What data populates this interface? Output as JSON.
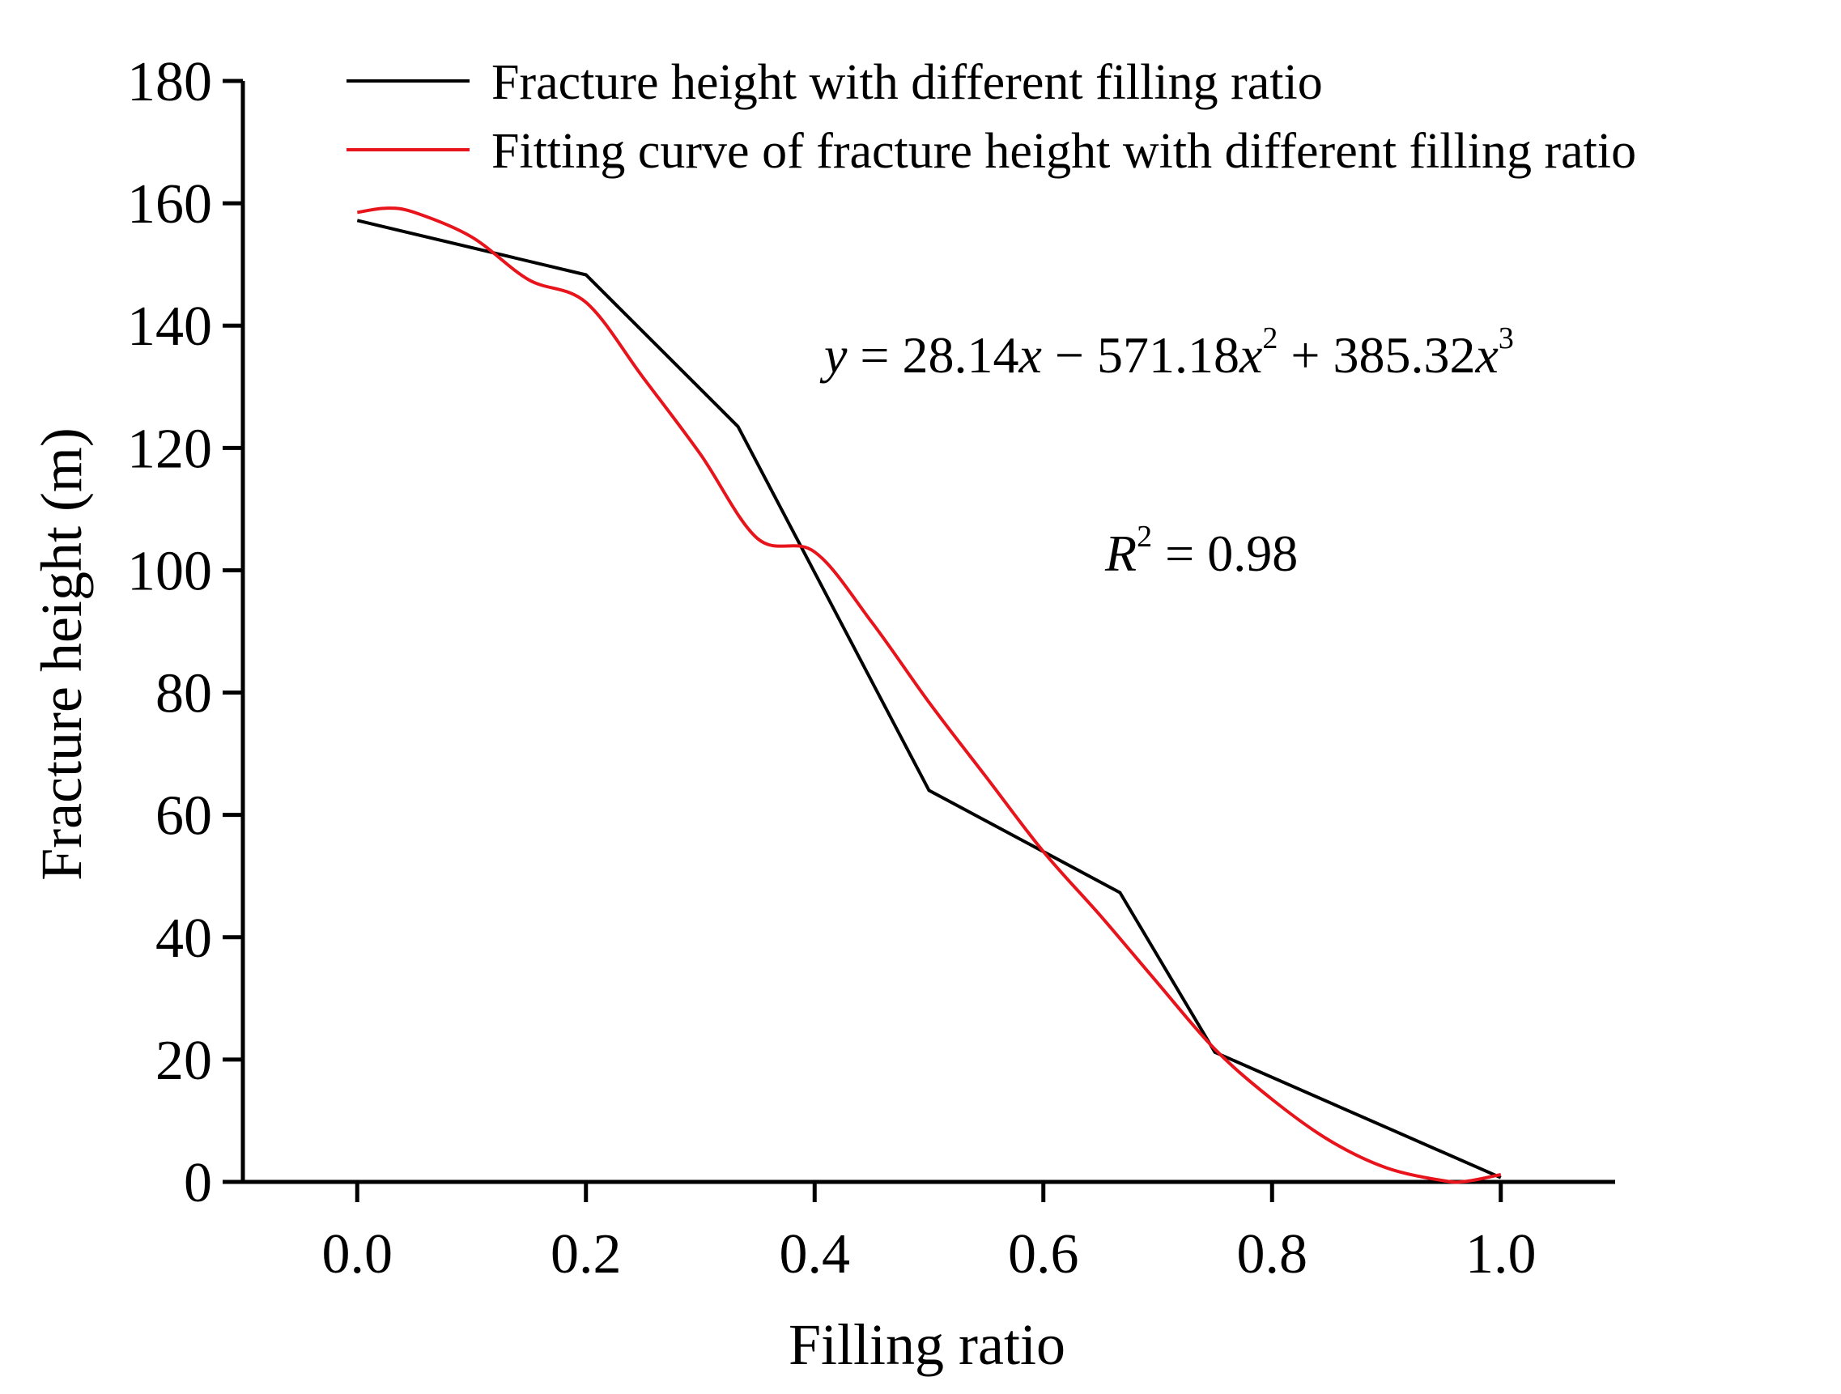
{
  "chart_data": {
    "type": "line",
    "title": "",
    "xlabel": "Filling ratio",
    "ylabel": "Fracture height (m)",
    "xlim": [
      -0.1,
      1.1
    ],
    "ylim": [
      0,
      180
    ],
    "x_ticks": [
      "0.0",
      "0.2",
      "0.4",
      "0.6",
      "0.8",
      "1.0"
    ],
    "y_ticks": [
      "0",
      "20",
      "40",
      "60",
      "80",
      "100",
      "120",
      "140",
      "160",
      "180"
    ],
    "grid": false,
    "legend_position": "top",
    "series": [
      {
        "name": "Fracture height with different filling ratio",
        "color": "#000000",
        "x": [
          0.0,
          0.2,
          0.333,
          0.5,
          0.667,
          0.75,
          1.0
        ],
        "y": [
          157.2,
          148.3,
          123.5,
          64.0,
          47.3,
          21.2,
          0.7
        ]
      },
      {
        "name": "Fitting curve of fracture height with different filling ratio",
        "color": "#e8141c",
        "fit": "cubic",
        "x": [
          0.0,
          0.025,
          0.05,
          0.1,
          0.15,
          0.2,
          0.25,
          0.3,
          0.35,
          0.4,
          0.45,
          0.5,
          0.55,
          0.6,
          0.65,
          0.7,
          0.75,
          0.8,
          0.85,
          0.9,
          0.95,
          0.97,
          1.0
        ],
        "y": [
          158.5,
          159.2,
          158.5,
          154.5,
          147.5,
          143.8,
          131.5,
          119.0,
          105.2,
          103.0,
          91.5,
          78.4,
          66.2,
          54.0,
          43.5,
          32.5,
          21.7,
          13.5,
          6.8,
          2.3,
          0.2,
          0.1,
          1.2
        ]
      }
    ],
    "annotations": {
      "equation": {
        "y_var": "y",
        "eq1": " = 28.14",
        "x1": "x",
        "eq2": " − 571.18",
        "x2": "x",
        "p2": "2",
        "eq3": " + 385.32",
        "x3": "x",
        "p3": "3"
      },
      "r2": {
        "r_var": "R",
        "p": "2",
        "value": " = 0.98"
      }
    }
  }
}
